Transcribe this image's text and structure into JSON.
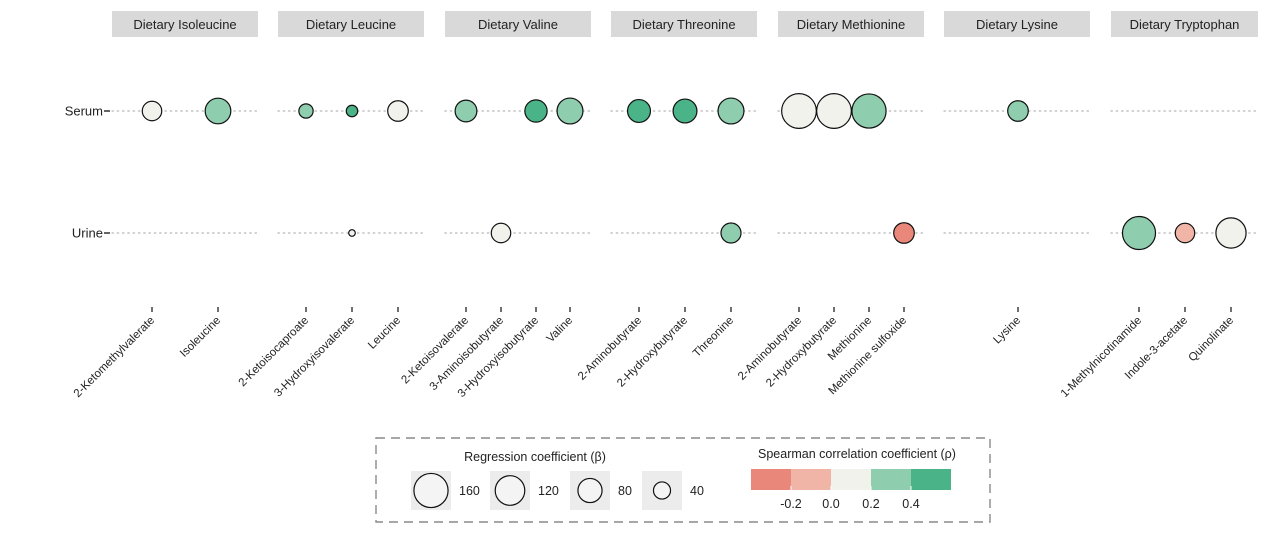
{
  "chart_data": {
    "type": "scatter",
    "facets": [
      {
        "name": "Dietary Isoleucine",
        "metabolites": [
          "2-Ketomethylvalerate",
          "Isoleucine"
        ]
      },
      {
        "name": "Dietary Leucine",
        "metabolites": [
          "2-Ketoisocaproate",
          "3-Hydroxyisovalerate",
          "Leucine"
        ]
      },
      {
        "name": "Dietary Valine",
        "metabolites": [
          "2-Ketoisovalerate",
          "3-Aminoisobutyrate",
          "3-Hydroxyisobutyrate",
          "Valine"
        ]
      },
      {
        "name": "Dietary Threonine",
        "metabolites": [
          "2-Aminobutyrate",
          "2-Hydroxybutyrate",
          "Threonine"
        ]
      },
      {
        "name": "Dietary Methionine",
        "metabolites": [
          "2-Aminobutyrate",
          "2-Hydroxybutyrate",
          "Methionine",
          "Methionine sulfoxide"
        ]
      },
      {
        "name": "Dietary Lysine",
        "metabolites": [
          "Lysine"
        ]
      },
      {
        "name": "Dietary Tryptophan",
        "metabolites": [
          "1-Methylnicotinamide",
          "Indole-3-acetate",
          "Quinolinate"
        ]
      }
    ],
    "rows": [
      "Serum",
      "Urine"
    ],
    "points": [
      {
        "facet": 0,
        "metabolite": 0,
        "row": 0,
        "beta": 52,
        "rho": 0.1
      },
      {
        "facet": 0,
        "metabolite": 1,
        "row": 0,
        "beta": 90,
        "rho": 0.3
      },
      {
        "facet": 1,
        "metabolite": 0,
        "row": 0,
        "beta": 28,
        "rho": 0.3
      },
      {
        "facet": 1,
        "metabolite": 1,
        "row": 0,
        "beta": 18,
        "rho": 0.45
      },
      {
        "facet": 1,
        "metabolite": 2,
        "row": 0,
        "beta": 58,
        "rho": 0.1
      },
      {
        "facet": 1,
        "metabolite": 1,
        "row": 1,
        "beta": 6,
        "rho": 0.1
      },
      {
        "facet": 2,
        "metabolite": 0,
        "row": 0,
        "beta": 65,
        "rho": 0.3
      },
      {
        "facet": 2,
        "metabolite": 2,
        "row": 0,
        "beta": 68,
        "rho": 0.45
      },
      {
        "facet": 2,
        "metabolite": 3,
        "row": 0,
        "beta": 92,
        "rho": 0.3
      },
      {
        "facet": 2,
        "metabolite": 1,
        "row": 1,
        "beta": 52,
        "rho": 0.1
      },
      {
        "facet": 3,
        "metabolite": 0,
        "row": 0,
        "beta": 72,
        "rho": 0.45
      },
      {
        "facet": 3,
        "metabolite": 1,
        "row": 0,
        "beta": 78,
        "rho": 0.45
      },
      {
        "facet": 3,
        "metabolite": 2,
        "row": 0,
        "beta": 92,
        "rho": 0.3
      },
      {
        "facet": 3,
        "metabolite": 2,
        "row": 1,
        "beta": 55,
        "rho": 0.3
      },
      {
        "facet": 4,
        "metabolite": 0,
        "row": 0,
        "beta": 165,
        "rho": 0.1
      },
      {
        "facet": 4,
        "metabolite": 1,
        "row": 0,
        "beta": 165,
        "rho": 0.1
      },
      {
        "facet": 4,
        "metabolite": 2,
        "row": 0,
        "beta": 160,
        "rho": 0.3
      },
      {
        "facet": 4,
        "metabolite": 3,
        "row": 1,
        "beta": 58,
        "rho": -0.25
      },
      {
        "facet": 5,
        "metabolite": 0,
        "row": 0,
        "beta": 58,
        "rho": 0.3
      },
      {
        "facet": 6,
        "metabolite": 0,
        "row": 1,
        "beta": 150,
        "rho": 0.3
      },
      {
        "facet": 6,
        "metabolite": 1,
        "row": 1,
        "beta": 52,
        "rho": -0.1
      },
      {
        "facet": 6,
        "metabolite": 2,
        "row": 1,
        "beta": 125,
        "rho": 0.1
      }
    ],
    "size_legend": {
      "title": "Regression coefficient (β)",
      "values": [
        160,
        120,
        80,
        40
      ]
    },
    "color_legend": {
      "title": "Spearman correlation coefficient (ρ)",
      "bins": [
        {
          "color": "#e9887a"
        },
        {
          "color": "#f1b5a8"
        },
        {
          "color": "#f2f2ec"
        },
        {
          "color": "#8ecdae"
        },
        {
          "color": "#4bb388"
        }
      ],
      "ticks": [
        "-0.2",
        "0.0",
        "0.2",
        "0.4"
      ]
    }
  }
}
